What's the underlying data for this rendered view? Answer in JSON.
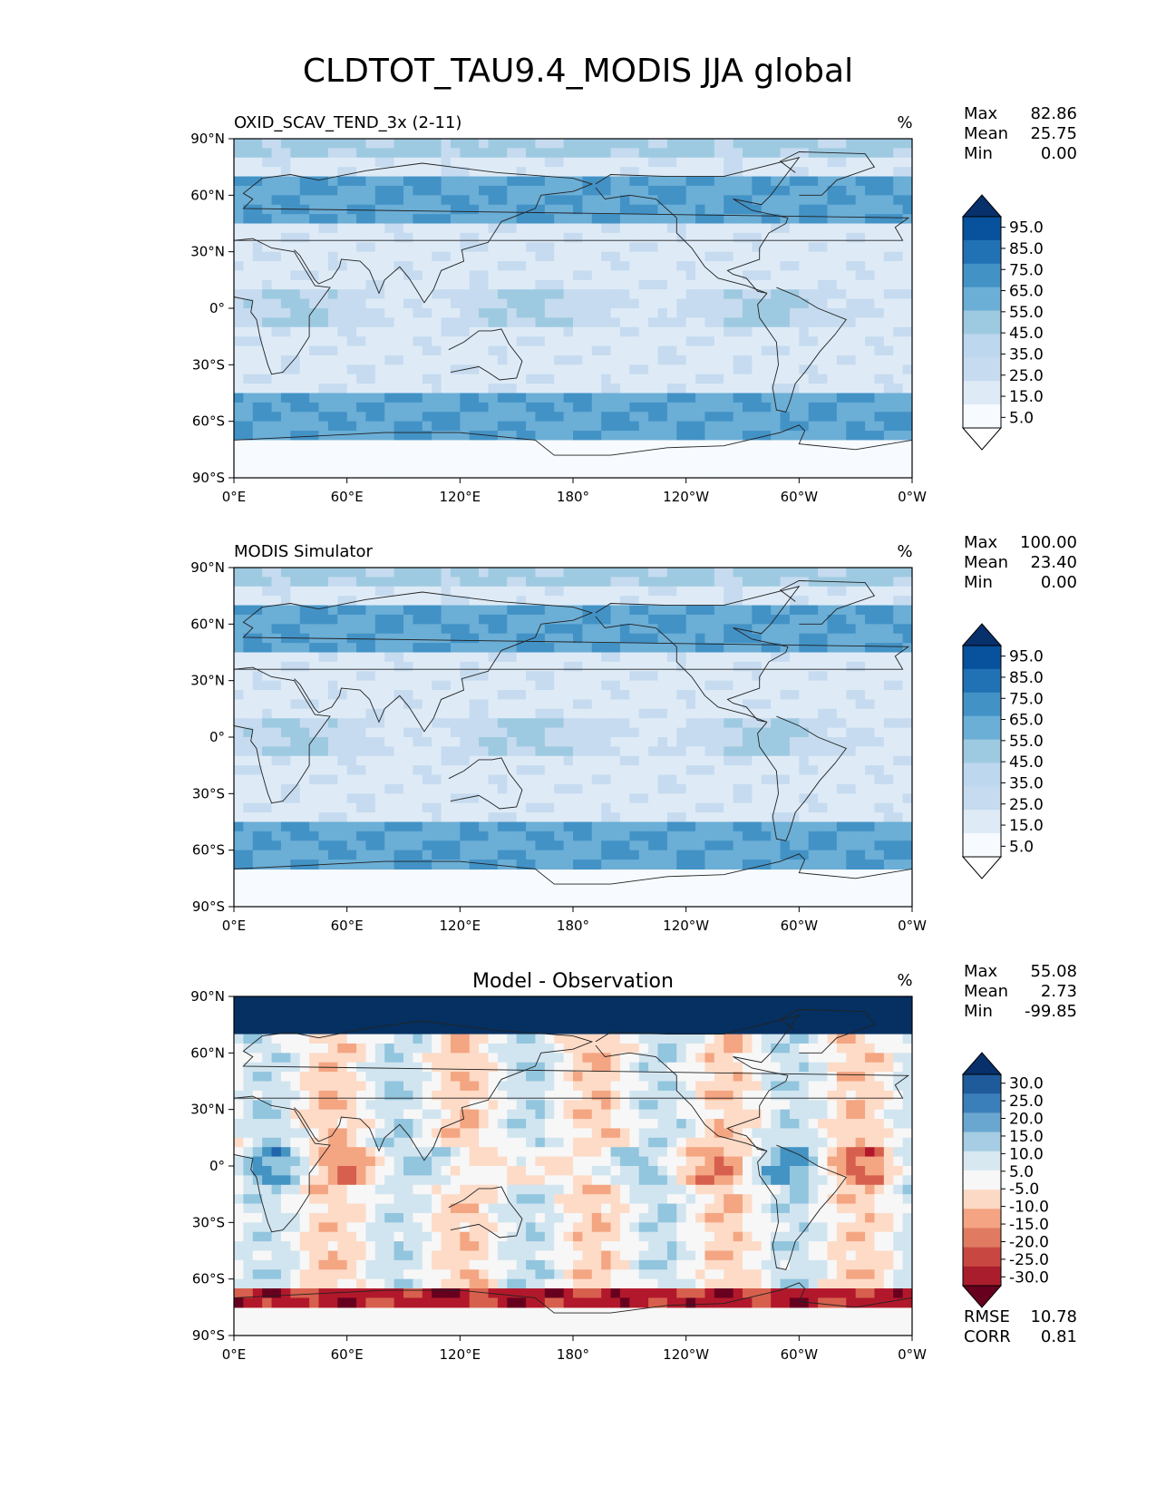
{
  "figure": {
    "title": "CLDTOT_TAU9.4_MODIS JJA global"
  },
  "chart_data": [
    {
      "type": "heatmap",
      "map_projection": "PlateCarree",
      "title_left": "OXID_SCAV_TEND_3x (2-11)",
      "title_center": "",
      "units": "%",
      "stats": [
        {
          "label": "Max",
          "value": "82.86"
        },
        {
          "label": "Mean",
          "value": "25.75"
        },
        {
          "label": "Min",
          "value": "0.00"
        }
      ],
      "x_ticks": [
        "0°E",
        "60°E",
        "120°E",
        "180°",
        "120°W",
        "60°W",
        "0°W"
      ],
      "y_ticks": [
        "90°N",
        "60°N",
        "30°N",
        "0°",
        "30°S",
        "60°S",
        "90°S"
      ],
      "colormap": "Blues",
      "colorbar_levels": [
        "95.0",
        "85.0",
        "75.0",
        "65.0",
        "55.0",
        "45.0",
        "35.0",
        "25.0",
        "15.0",
        "5.0"
      ],
      "colorbar_colors": [
        "#08306b",
        "#08519c",
        "#2171b5",
        "#4292c6",
        "#6baed6",
        "#9ecae1",
        "#bdd7ee",
        "#c6dbef",
        "#deebf7",
        "#f7fbff",
        "#ffffff"
      ],
      "xlim": [
        0,
        360
      ],
      "ylim": [
        -90,
        90
      ]
    },
    {
      "type": "heatmap",
      "map_projection": "PlateCarree",
      "title_left": "MODIS Simulator",
      "title_center": "",
      "units": "%",
      "stats": [
        {
          "label": "Max",
          "value": "100.00"
        },
        {
          "label": "Mean",
          "value": "23.40"
        },
        {
          "label": "Min",
          "value": "0.00"
        }
      ],
      "x_ticks": [
        "0°E",
        "60°E",
        "120°E",
        "180°",
        "120°W",
        "60°W",
        "0°W"
      ],
      "y_ticks": [
        "90°N",
        "60°N",
        "30°N",
        "0°",
        "30°S",
        "60°S",
        "90°S"
      ],
      "colormap": "Blues",
      "colorbar_levels": [
        "95.0",
        "85.0",
        "75.0",
        "65.0",
        "55.0",
        "45.0",
        "35.0",
        "25.0",
        "15.0",
        "5.0"
      ],
      "colorbar_colors": [
        "#08306b",
        "#08519c",
        "#2171b5",
        "#4292c6",
        "#6baed6",
        "#9ecae1",
        "#bdd7ee",
        "#c6dbef",
        "#deebf7",
        "#f7fbff",
        "#ffffff"
      ],
      "xlim": [
        0,
        360
      ],
      "ylim": [
        -90,
        90
      ]
    },
    {
      "type": "heatmap",
      "map_projection": "PlateCarree",
      "title_left": "",
      "title_center": "Model - Observation",
      "units": "%",
      "stats": [
        {
          "label": "Max",
          "value": "55.08"
        },
        {
          "label": "Mean",
          "value": "2.73"
        },
        {
          "label": "Min",
          "value": "-99.85"
        }
      ],
      "x_ticks": [
        "0°E",
        "60°E",
        "120°E",
        "180°",
        "120°W",
        "60°W",
        "0°W"
      ],
      "y_ticks": [
        "90°N",
        "60°N",
        "30°N",
        "0°",
        "30°S",
        "60°S",
        "90°S"
      ],
      "colormap": "RdBu",
      "colorbar_levels": [
        "30.0",
        "25.0",
        "20.0",
        "15.0",
        "10.0",
        "5.0",
        "-5.0",
        "-10.0",
        "-15.0",
        "-20.0",
        "-25.0",
        "-30.0"
      ],
      "colorbar_colors": [
        "#08306b",
        "#1f5a9a",
        "#3b7fba",
        "#6aa7d0",
        "#a6cde3",
        "#d8e8f1",
        "#f7f7f7",
        "#fcd9c5",
        "#f4a482",
        "#e07b62",
        "#c94741",
        "#a91d2d",
        "#67001f"
      ],
      "extra_stats": [
        {
          "label": "RMSE",
          "value": "10.78"
        },
        {
          "label": "CORR",
          "value": "0.81"
        }
      ],
      "xlim": [
        0,
        360
      ],
      "ylim": [
        -90,
        90
      ]
    }
  ]
}
